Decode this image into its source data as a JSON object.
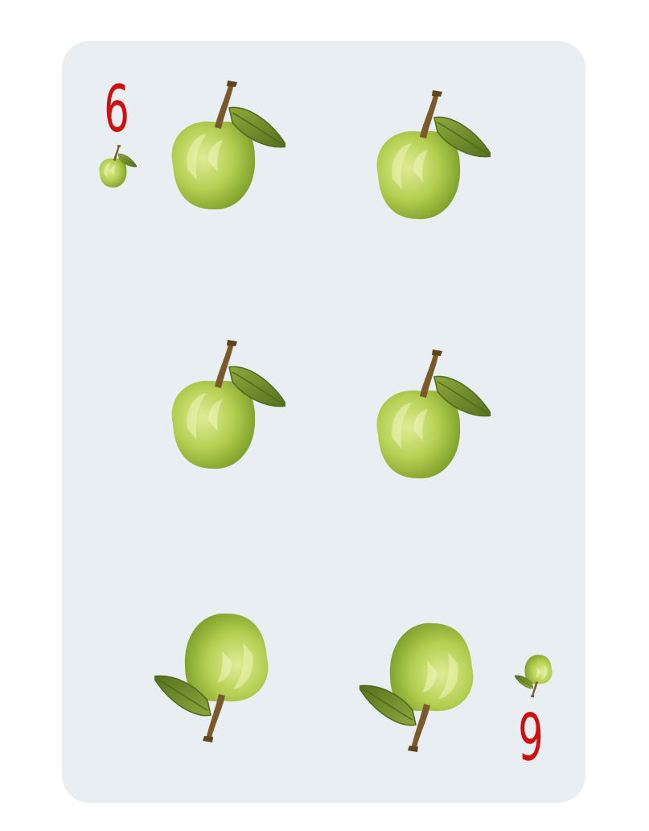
{
  "card": {
    "rank_top": "6",
    "rank_bottom": "6",
    "suit_icon": "green-apple-icon",
    "pip_count": 6
  },
  "colors": {
    "card_background": "#e8eef2",
    "rank": "#cc1111",
    "apple_light": "#d9e88a",
    "apple_mid": "#a9c84a",
    "apple_dark": "#7e9f2a",
    "stem": "#7a5a2a",
    "leaf": "#6f8a2c",
    "leaf_dark": "#4f6a1c"
  }
}
